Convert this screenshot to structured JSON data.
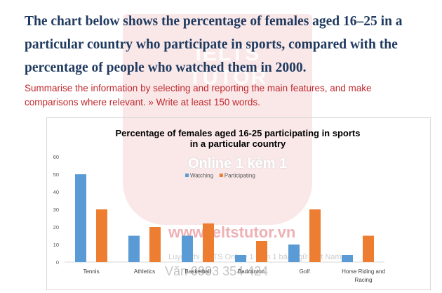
{
  "heading": "The chart below shows the percentage of females aged 16–25 in a particular country who participate in sports, compared with the percentage of people who watched them in 2000.",
  "instruction": "Summarise the information by selecting and reporting the main features, and make comparisons where relevant. » Write at least 150 words.",
  "watermark": {
    "brand": "IELTS TUTOR",
    "online": "Online 1 kèm 1",
    "url": "www.ieltstutor.vn",
    "sub": "Luyện thi IELTS Online 1 kèm 1 bản ngữ Việt Nam",
    "phone": "Văn 0903 354 424"
  },
  "chart_data": {
    "type": "bar",
    "title": "Percentage of females aged 16-25 participating in sports in a particular country",
    "title_lines": [
      "Percentage of females aged 16-25 participating in sports",
      "in a particular country"
    ],
    "categories": [
      "Tennis",
      "Athletics",
      "Basketball",
      "Badminton",
      "Golf",
      "Horse Riding and Racing"
    ],
    "category_lines": [
      [
        "Tennis"
      ],
      [
        "Athletics"
      ],
      [
        "Basketball"
      ],
      [
        "Badminton"
      ],
      [
        "Golf"
      ],
      [
        "Horse Riding and",
        "Racing"
      ]
    ],
    "series": [
      {
        "name": "Watching",
        "values": [
          50,
          15,
          15,
          4,
          10,
          4
        ],
        "color": "#5b9bd5"
      },
      {
        "name": "Participating",
        "values": [
          30,
          20,
          22,
          12,
          30,
          15
        ],
        "color": "#ed7d31"
      }
    ],
    "ylim": [
      0,
      60
    ],
    "yticks": [
      "0",
      "10",
      "20",
      "30",
      "40",
      "50",
      "60"
    ],
    "grid": false,
    "legend": "top-center",
    "xlabel": "",
    "ylabel": ""
  }
}
